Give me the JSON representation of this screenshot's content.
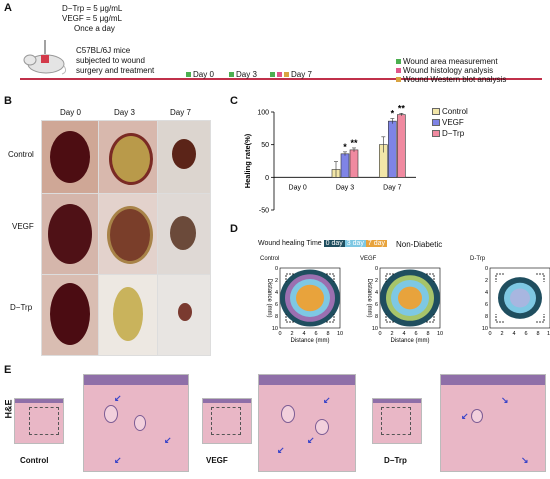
{
  "panelA": {
    "label": "A",
    "dose1": "D−Trp  = 5 μg/mL",
    "dose2": "VEGF = 5 μg/mL",
    "freq": "Once a day",
    "mouse1": "C57BL/6J mice",
    "mouse2": "subjected to wound",
    "mouse3": "surgery and treatment",
    "days": [
      "Day 0",
      "Day 3",
      "Day 7"
    ],
    "legend": [
      "Wound area measurement",
      "Wound histology analysis",
      "Wound Western blot analysis"
    ],
    "colors": {
      "green": "#4caf50",
      "pink": "#e0558a",
      "orange": "#d9a441",
      "timeline": "#c0304a"
    }
  },
  "panelB": {
    "label": "B",
    "cols": [
      "Day 0",
      "Day 3",
      "Day 7"
    ],
    "rows": [
      "Control",
      "VEGF",
      "D−Trp"
    ]
  },
  "panelC": {
    "label": "C",
    "legend": [
      "Control",
      "VEGF",
      "D−Trp"
    ]
  },
  "chart_data": {
    "type": "bar",
    "categories": [
      "Day 0",
      "Day 3",
      "Day 7"
    ],
    "series": [
      {
        "name": "Control",
        "values": [
          0,
          12,
          50
        ],
        "errors": [
          0,
          12,
          12
        ],
        "color": "#f2e6a8"
      },
      {
        "name": "VEGF",
        "values": [
          0,
          36,
          86
        ],
        "errors": [
          0,
          3,
          4
        ],
        "color": "#7f84e6"
      },
      {
        "name": "D−Trp",
        "values": [
          0,
          42,
          96
        ],
        "errors": [
          0,
          3,
          2
        ],
        "color": "#f08aa0"
      }
    ],
    "ylabel": "Healing rate(%)",
    "ylim": [
      -50,
      100
    ],
    "yticks": [
      -50,
      0,
      50,
      100
    ],
    "significance": [
      {
        "category": "Day 3",
        "series": "VEGF",
        "mark": "*"
      },
      {
        "category": "Day 3",
        "series": "D−Trp",
        "mark": "**"
      },
      {
        "category": "Day 7",
        "series": "VEGF",
        "mark": "*"
      },
      {
        "category": "Day 7",
        "series": "D−Trp",
        "mark": "**"
      }
    ]
  },
  "panelD": {
    "label": "D",
    "legend_title": "Wound healing Time",
    "legend_items": [
      "0 day",
      "3 day",
      "7 day"
    ],
    "legend_colors": [
      "#1f4e5f",
      "#7ec8e3",
      "#e8a33c"
    ],
    "condition": "Non-Diabetic",
    "maps": [
      "Control",
      "VEGF",
      "D-Trp"
    ],
    "ticks": [
      "0",
      "2",
      "4",
      "6",
      "8",
      "10"
    ],
    "xlabel": "Distance  (mm)",
    "ylabel": "Distance  (mm)"
  },
  "panelE": {
    "label": "E",
    "stain": "H&E",
    "groups": [
      "Control",
      "VEGF",
      "D−Trp"
    ]
  }
}
